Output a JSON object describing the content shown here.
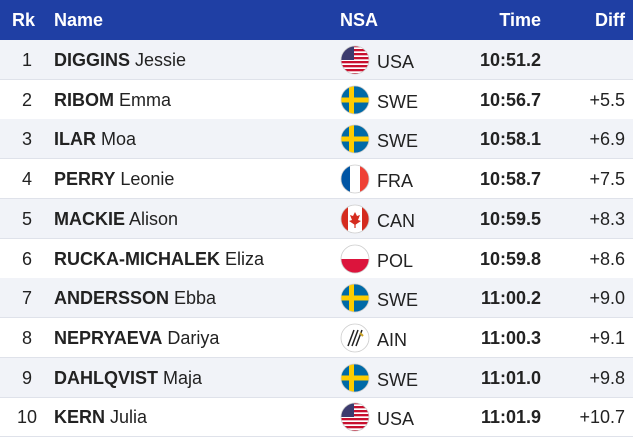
{
  "header": {
    "rank": "Rk",
    "name": "Name",
    "nsa": "NSA",
    "time": "Time",
    "diff": "Diff"
  },
  "rows": [
    {
      "rank": 1,
      "last": "DIGGINS",
      "first": "Jessie",
      "nsa": "USA",
      "time": "10:51.2"
    },
    {
      "rank": 2,
      "last": "RIBOM",
      "first": "Emma",
      "nsa": "SWE",
      "time": "10:56.7",
      "diff": "+5.5"
    },
    {
      "rank": 3,
      "last": "ILAR",
      "first": "Moa",
      "nsa": "SWE",
      "time": "10:58.1",
      "diff": "+6.9"
    },
    {
      "rank": 4,
      "last": "PERRY",
      "first": "Leonie",
      "nsa": "FRA",
      "time": "10:58.7",
      "diff": "+7.5"
    },
    {
      "rank": 5,
      "last": "MACKIE",
      "first": "Alison",
      "nsa": "CAN",
      "time": "10:59.5",
      "diff": "+8.3"
    },
    {
      "rank": 6,
      "last": "RUCKA-MICHALEK",
      "first": "Eliza",
      "nsa": "POL",
      "time": "10:59.8",
      "diff": "+8.6"
    },
    {
      "rank": 7,
      "last": "ANDERSSON",
      "first": "Ebba",
      "nsa": "SWE",
      "time": "11:00.2",
      "diff": "+9.0"
    },
    {
      "rank": 8,
      "last": "NEPRYAEVA",
      "first": "Dariya",
      "nsa": "AIN",
      "time": "11:00.3",
      "diff": "+9.1"
    },
    {
      "rank": 9,
      "last": "DAHLQVIST",
      "first": "Maja",
      "nsa": "SWE",
      "time": "11:01.0",
      "diff": "+9.8"
    },
    {
      "rank": 10,
      "last": "KERN",
      "first": "Julia",
      "nsa": "USA",
      "time": "11:01.9",
      "diff": "+10.7"
    }
  ]
}
